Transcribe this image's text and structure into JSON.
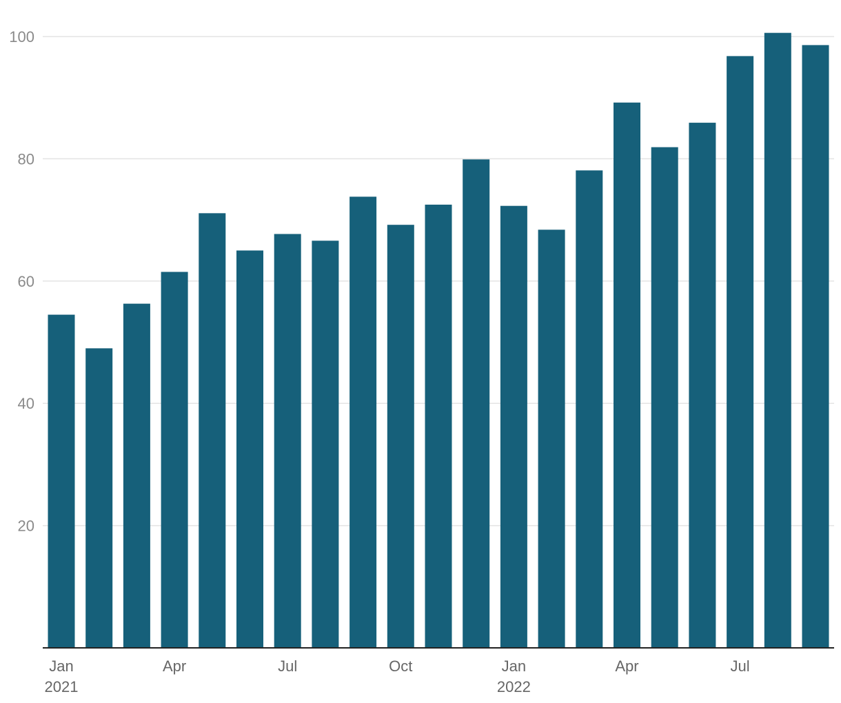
{
  "chart_data": {
    "type": "bar",
    "categories": [
      "2021-01",
      "2021-02",
      "2021-03",
      "2021-04",
      "2021-05",
      "2021-06",
      "2021-07",
      "2021-08",
      "2021-09",
      "2021-10",
      "2021-11",
      "2021-12",
      "2022-01",
      "2022-02",
      "2022-03",
      "2022-04",
      "2022-05",
      "2022-06",
      "2022-07",
      "2022-08",
      "2022-09"
    ],
    "values": [
      54.5,
      49.0,
      56.3,
      61.5,
      71.1,
      65.0,
      67.7,
      66.6,
      73.8,
      69.2,
      72.5,
      79.9,
      72.3,
      68.4,
      78.1,
      89.2,
      81.9,
      85.9,
      96.8,
      100.6,
      98.6
    ],
    "ylim": [
      0,
      100
    ],
    "y_ticks": [
      20,
      40,
      60,
      80,
      100
    ],
    "x_tick_labels": [
      {
        "category": "2021-01",
        "month": "Jan",
        "year": "2021"
      },
      {
        "category": "2021-04",
        "month": "Apr",
        "year": ""
      },
      {
        "category": "2021-07",
        "month": "Jul",
        "year": ""
      },
      {
        "category": "2021-10",
        "month": "Oct",
        "year": ""
      },
      {
        "category": "2022-01",
        "month": "Jan",
        "year": "2022"
      },
      {
        "category": "2022-04",
        "month": "Apr",
        "year": ""
      },
      {
        "category": "2022-07",
        "month": "Jul",
        "year": ""
      }
    ],
    "grid": true,
    "title": "",
    "xlabel": "",
    "ylabel": "",
    "bar_color": "#16607a"
  }
}
